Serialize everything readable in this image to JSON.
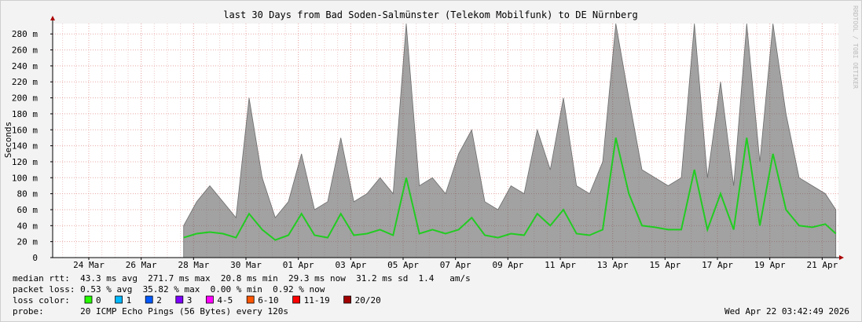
{
  "chart_data": {
    "type": "line",
    "title": "last 30 Days from Bad Soden-Salmünster (Telekom Mobilfunk) to DE Nürnberg",
    "ylabel": "Seconds",
    "watermark": "RRDTOOL / TOBI OETIKER",
    "x": [
      5.0,
      5.5,
      6.0,
      6.5,
      7.0,
      7.5,
      8.0,
      8.5,
      9.0,
      9.5,
      10.0,
      10.5,
      11.0,
      11.5,
      12.0,
      12.5,
      13.0,
      13.5,
      14.0,
      14.5,
      15.0,
      15.5,
      16.0,
      16.5,
      17.0,
      17.5,
      18.0,
      18.5,
      19.0,
      19.5,
      20.0,
      20.5,
      21.0,
      21.5,
      22.0,
      22.5,
      23.0,
      23.5,
      24.0,
      24.5,
      25.0,
      25.5,
      26.0,
      26.5,
      27.0,
      27.5,
      28.0,
      28.5,
      29.0,
      29.5,
      29.9
    ],
    "series": [
      {
        "color": "#555555",
        "style": "area",
        "values": [
          0.04,
          0.07,
          0.09,
          0.07,
          0.05,
          0.2,
          0.1,
          0.05,
          0.07,
          0.13,
          0.06,
          0.07,
          0.15,
          0.07,
          0.08,
          0.1,
          0.08,
          0.293,
          0.09,
          0.1,
          0.08,
          0.13,
          0.16,
          0.07,
          0.06,
          0.09,
          0.08,
          0.16,
          0.11,
          0.2,
          0.09,
          0.08,
          0.12,
          0.293,
          0.2,
          0.11,
          0.1,
          0.09,
          0.1,
          0.293,
          0.1,
          0.22,
          0.09,
          0.293,
          0.12,
          0.293,
          0.18,
          0.1,
          0.09,
          0.08,
          0.06
        ]
      },
      {
        "color": "#22cc22",
        "style": "line",
        "values": [
          0.025,
          0.03,
          0.032,
          0.03,
          0.025,
          0.055,
          0.035,
          0.022,
          0.028,
          0.055,
          0.028,
          0.025,
          0.055,
          0.028,
          0.03,
          0.035,
          0.028,
          0.1,
          0.03,
          0.035,
          0.03,
          0.035,
          0.05,
          0.028,
          0.025,
          0.03,
          0.028,
          0.055,
          0.04,
          0.06,
          0.03,
          0.028,
          0.035,
          0.15,
          0.08,
          0.04,
          0.038,
          0.035,
          0.035,
          0.11,
          0.035,
          0.08,
          0.035,
          0.15,
          0.04,
          0.13,
          0.06,
          0.04,
          0.038,
          0.042,
          0.03
        ]
      }
    ],
    "xlim": [
      0,
      30
    ],
    "xticks": [
      {
        "value": 1.38,
        "label": "24 Mar"
      },
      {
        "value": 3.38,
        "label": "26 Mar"
      },
      {
        "value": 5.38,
        "label": "28 Mar"
      },
      {
        "value": 7.38,
        "label": "30 Mar"
      },
      {
        "value": 9.38,
        "label": "01 Apr"
      },
      {
        "value": 11.38,
        "label": "03 Apr"
      },
      {
        "value": 13.38,
        "label": "05 Apr"
      },
      {
        "value": 15.38,
        "label": "07 Apr"
      },
      {
        "value": 17.38,
        "label": "09 Apr"
      },
      {
        "value": 19.38,
        "label": "11 Apr"
      },
      {
        "value": 21.38,
        "label": "13 Apr"
      },
      {
        "value": 23.38,
        "label": "15 Apr"
      },
      {
        "value": 25.38,
        "label": "17 Apr"
      },
      {
        "value": 27.38,
        "label": "19 Apr"
      },
      {
        "value": 29.38,
        "label": "21 Apr"
      }
    ],
    "ylim": [
      0,
      0.293
    ],
    "yticks": [
      0,
      {
        "value": 0.02,
        "label": "20 m"
      },
      {
        "value": 0.04,
        "label": "40 m"
      },
      {
        "value": 0.06,
        "label": "60 m"
      },
      {
        "value": 0.08,
        "label": "80 m"
      },
      {
        "value": 0.1,
        "label": "100 m"
      },
      {
        "value": 0.12,
        "label": "120 m"
      },
      {
        "value": 0.14,
        "label": "140 m"
      },
      {
        "value": 0.16,
        "label": "160 m"
      },
      {
        "value": 0.18,
        "label": "180 m"
      },
      {
        "value": 0.2,
        "label": "200 m"
      },
      {
        "value": 0.22,
        "label": "220 m"
      },
      {
        "value": 0.24,
        "label": "240 m"
      },
      {
        "value": 0.26,
        "label": "260 m"
      },
      {
        "value": 0.28,
        "label": "280 m"
      }
    ],
    "grid": true,
    "stats": {
      "median_rtt": "median rtt:  43.3 ms avg  271.7 ms max  20.8 ms min  29.3 ms now  31.2 ms sd  1.4   am/s",
      "packet_loss": "packet loss: 0.53 % avg  35.82 % max  0.00 % min  0.92 % now",
      "loss_color_label": "loss color:",
      "loss_colors": [
        {
          "label": "0",
          "color": "#26ff00"
        },
        {
          "label": "1",
          "color": "#00b8ff"
        },
        {
          "label": "2",
          "color": "#0059ff"
        },
        {
          "label": "3",
          "color": "#7e00ff"
        },
        {
          "label": "4-5",
          "color": "#ff00ff"
        },
        {
          "label": "6-10",
          "color": "#ff5500"
        },
        {
          "label": "11-19",
          "color": "#ff0000"
        },
        {
          "label": "20/20",
          "color": "#a10000"
        }
      ],
      "probe": "probe:       20 ICMP Echo Pings (56 Bytes) every 120s",
      "date": "Wed Apr 22 03:42:49 2026"
    }
  }
}
